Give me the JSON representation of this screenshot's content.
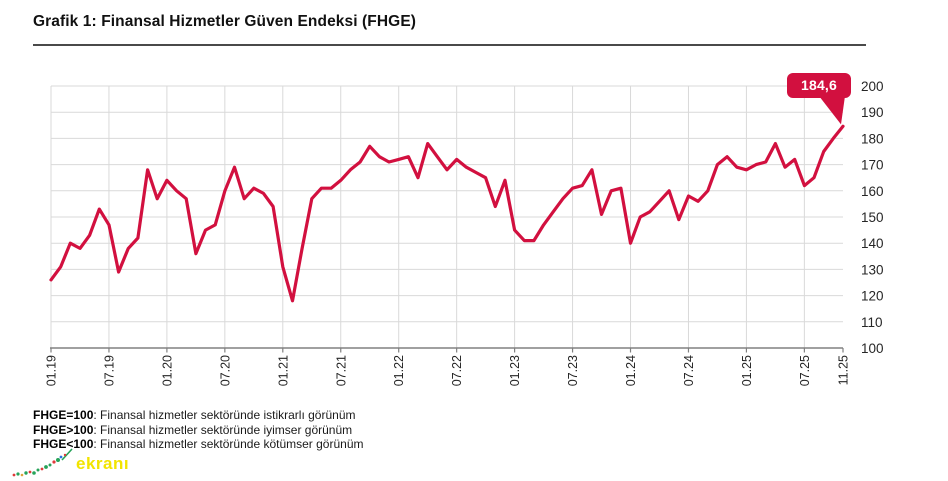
{
  "header": {
    "title": "Grafik 1: Finansal Hizmetler Güven Endeksi (FHGE)"
  },
  "annotation": {
    "last_value": "184,6"
  },
  "chart_data": {
    "type": "line",
    "title": "Grafik 1: Finansal Hizmetler Güven Endeksi (FHGE)",
    "series_name": "FHGE",
    "x": [
      "01.19",
      "02.19",
      "03.19",
      "04.19",
      "05.19",
      "06.19",
      "07.19",
      "08.19",
      "09.19",
      "10.19",
      "11.19",
      "12.19",
      "01.20",
      "02.20",
      "03.20",
      "04.20",
      "05.20",
      "06.20",
      "07.20",
      "08.20",
      "09.20",
      "10.20",
      "11.20",
      "12.20",
      "01.21",
      "02.21",
      "03.21",
      "04.21",
      "05.21",
      "06.21",
      "07.21",
      "08.21",
      "09.21",
      "10.21",
      "11.21",
      "12.21",
      "01.22",
      "02.22",
      "03.22",
      "04.22",
      "05.22",
      "06.22",
      "07.22",
      "08.22",
      "09.22",
      "10.22",
      "11.22",
      "12.22",
      "01.23",
      "02.23",
      "03.23",
      "04.23",
      "05.23",
      "06.23",
      "07.23",
      "08.23",
      "09.23",
      "10.23",
      "11.23",
      "12.23",
      "01.24",
      "02.24",
      "03.24",
      "04.24",
      "05.24",
      "06.24",
      "07.24",
      "08.24",
      "09.24",
      "10.24",
      "11.24",
      "12.24",
      "01.25",
      "02.25",
      "03.25",
      "04.25",
      "05.25",
      "06.25",
      "07.25",
      "08.25",
      "09.25",
      "10.25",
      "11.25"
    ],
    "values": [
      126,
      131,
      140,
      138,
      143,
      153,
      147,
      129,
      138,
      142,
      168,
      157,
      164,
      160,
      157,
      136,
      145,
      147,
      160,
      169,
      157,
      161,
      159,
      154,
      131,
      118,
      138,
      157,
      161,
      161,
      164,
      168,
      171,
      177,
      173,
      171,
      172,
      173,
      165,
      178,
      173,
      168,
      172,
      169,
      167,
      165,
      154,
      164,
      145,
      141,
      141,
      147,
      152,
      157,
      161,
      162,
      168,
      151,
      160,
      161,
      140,
      150,
      152,
      156,
      160,
      149,
      158,
      156,
      160,
      170,
      173,
      169,
      168,
      170,
      171,
      178,
      169,
      172,
      162,
      165,
      175,
      180,
      184.6
    ],
    "x_tick_labels": [
      "01.19",
      "07.19",
      "01.20",
      "07.20",
      "01.21",
      "07.21",
      "01.22",
      "07.22",
      "01.23",
      "07.23",
      "01.24",
      "07.24",
      "01.25",
      "07.25",
      "11.25"
    ],
    "y_ticks": [
      100,
      110,
      120,
      130,
      140,
      150,
      160,
      170,
      180,
      190,
      200
    ],
    "ylim": [
      100,
      200
    ],
    "grid": true,
    "legend": "none",
    "last_value_label": "184,6",
    "line_color": "#d2103f"
  },
  "footnotes": [
    {
      "term": "FHGE=100",
      "text": ": Finansal hizmetler sektöründe istikrarlı görünüm"
    },
    {
      "term": "FHGE>100",
      "text": ": Finansal hizmetler sektöründe iyimser görünüm"
    },
    {
      "term": "FHGE<100",
      "text": ": Finansal hizmetler sektöründe kötümser görünüm"
    }
  ],
  "logo": {
    "text": "ekranı"
  },
  "colors": {
    "line": "#d2103f",
    "badge_bg": "#d2103f",
    "grid": "#d9d9d9",
    "axis": "#808080",
    "tick_text": "#333333",
    "logo_yellow": "#f2e400",
    "logo_green": "#27a35a",
    "logo_red": "#e03a3a"
  }
}
